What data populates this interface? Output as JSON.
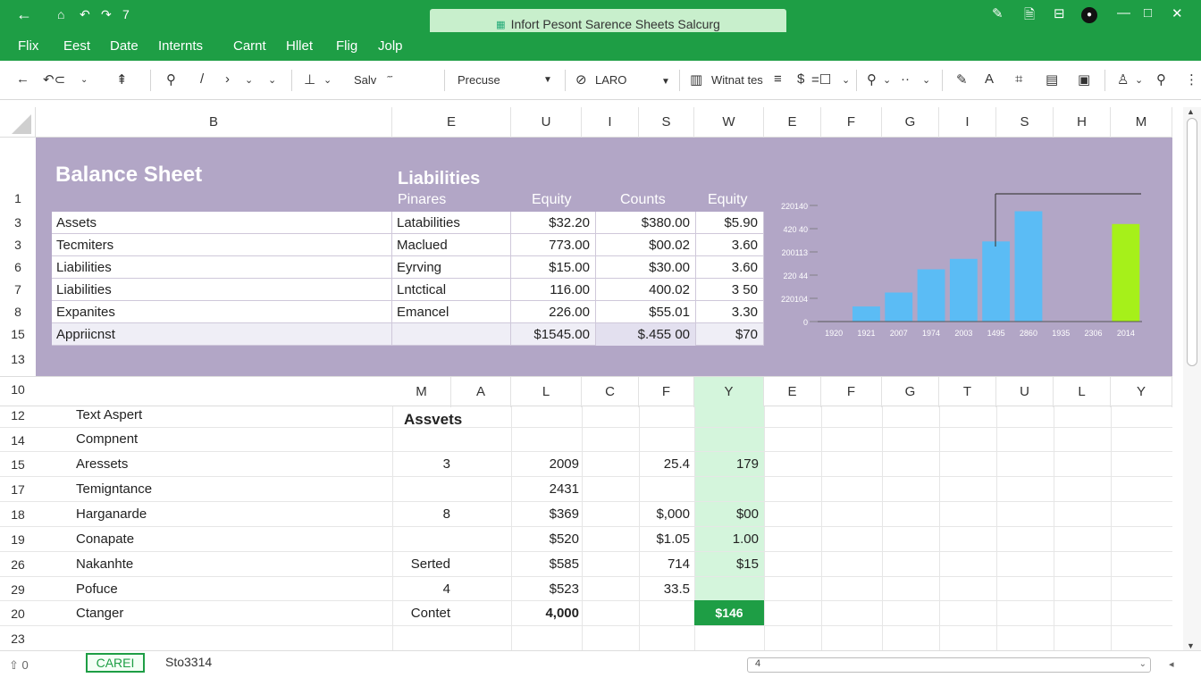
{
  "titlebar": {
    "back": "←",
    "quick_access": [
      "⌂",
      "↶",
      "↷",
      "7"
    ],
    "doc_title": "Infort Pesont Sarence Sheets Salcurg",
    "right_icons": [
      "✎",
      "🗎",
      "⊟",
      "●",
      "—",
      "□",
      "✕"
    ]
  },
  "menu": [
    "Flix",
    "Eest",
    "Date",
    "Internts",
    "Carnt",
    "Hllet",
    "Flig",
    "Jolp"
  ],
  "toolbar": {
    "save_label": "Salv",
    "style_select": "Precuse",
    "font_select": "LARO",
    "wrap_label": "Witnat tes"
  },
  "grid": {
    "column_headers_top": [
      "B",
      "E",
      "U",
      "I",
      "S",
      "W",
      "E",
      "F",
      "G",
      "I",
      "S",
      "H",
      "M"
    ],
    "row_headers_top": [
      "1",
      "3",
      "3",
      "6",
      "7",
      "8",
      "15",
      "13"
    ],
    "column_headers_mid": [
      "M",
      "A",
      "L",
      "C",
      "F",
      "Y",
      "E",
      "F",
      "G",
      "T",
      "U",
      "L",
      "Y"
    ],
    "row_headers_mid": [
      "10",
      "12",
      "14",
      "15",
      "17",
      "18",
      "19",
      "26",
      "29",
      "20",
      "23"
    ]
  },
  "balance_sheet": {
    "title": "Balance Sheet",
    "liabilities_title": "Liabilities",
    "sub_headers": [
      "Pinares",
      "Equity",
      "Counts",
      "Equity"
    ],
    "rows": [
      {
        "a": "Assets",
        "b": "Latabilities",
        "c": "$32.20",
        "d": "$380.00",
        "e": "$5.90"
      },
      {
        "a": "Tecmiters",
        "b": "Maclued",
        "c": "773.00",
        "d": "$00.02",
        "e": "3.60"
      },
      {
        "a": "Liabilities",
        "b": "Eyrving",
        "c": "$15.00",
        "d": "$30.00",
        "e": "3.60"
      },
      {
        "a": "Liabilities",
        "b": "Lntctical",
        "c": "116.00",
        "d": "400.02",
        "e": "3 50"
      },
      {
        "a": "Expanites",
        "b": "Emancel",
        "c": "226.00",
        "d": "$55.01",
        "e": "3.30"
      },
      {
        "a": "Appriicnst",
        "b": "",
        "c": "$1545.00",
        "d": "$.455 00",
        "e": "$70"
      }
    ]
  },
  "chart_data": {
    "type": "bar",
    "y_tick_labels": [
      "220140",
      "420 40",
      "200113",
      "220 44",
      "220104",
      "0"
    ],
    "x_tick_labels": [
      "1920",
      "1921",
      "2007",
      "1974",
      "2003",
      "1495",
      "2860",
      "1935",
      "2306",
      "2014"
    ],
    "values": [
      0,
      13,
      25,
      45,
      54,
      69,
      95,
      0,
      0,
      84
    ],
    "ylim": [
      0,
      100
    ],
    "colors": {
      "bar": "#5bbcf5",
      "highlight": "#a6f01a"
    },
    "highlight_index": 9,
    "grid": false
  },
  "lower": {
    "assets_heading": "Assvets",
    "rows": [
      {
        "label": "Text Aspert",
        "c1": "",
        "c2": "",
        "c3": "",
        "c4": ""
      },
      {
        "label": "Compnent",
        "c1": "",
        "c2": "",
        "c3": "",
        "c4": ""
      },
      {
        "label": "Aressets",
        "c1": "3",
        "c2": "2009",
        "c3": "25.4",
        "c4": "179"
      },
      {
        "label": "Temigntance",
        "c1": "",
        "c2": "2431",
        "c3": "",
        "c4": ""
      },
      {
        "label": "Harganarde",
        "c1": "8",
        "c2": "$369",
        "c3": "$,000",
        "c4": "$00"
      },
      {
        "label": "Conapate",
        "c1": "",
        "c2": "$520",
        "c3": "$1.05",
        "c4": "1.00"
      },
      {
        "label": "Nakanhte",
        "c1": "Serted",
        "c2": "$585",
        "c3": "714",
        "c4": "$15"
      },
      {
        "label": "Pofuce",
        "c1": "4",
        "c2": "$523",
        "c3": "33.5",
        "c4": ""
      },
      {
        "label": "Ctanger",
        "c1": "Contet",
        "c2": "4,000",
        "c3": "",
        "c4": "$146"
      }
    ]
  },
  "sheets": {
    "nav": "⇧ 0",
    "active_tab": "CAREI",
    "second_tab": "Sto3314",
    "hscroll_label": "4"
  }
}
